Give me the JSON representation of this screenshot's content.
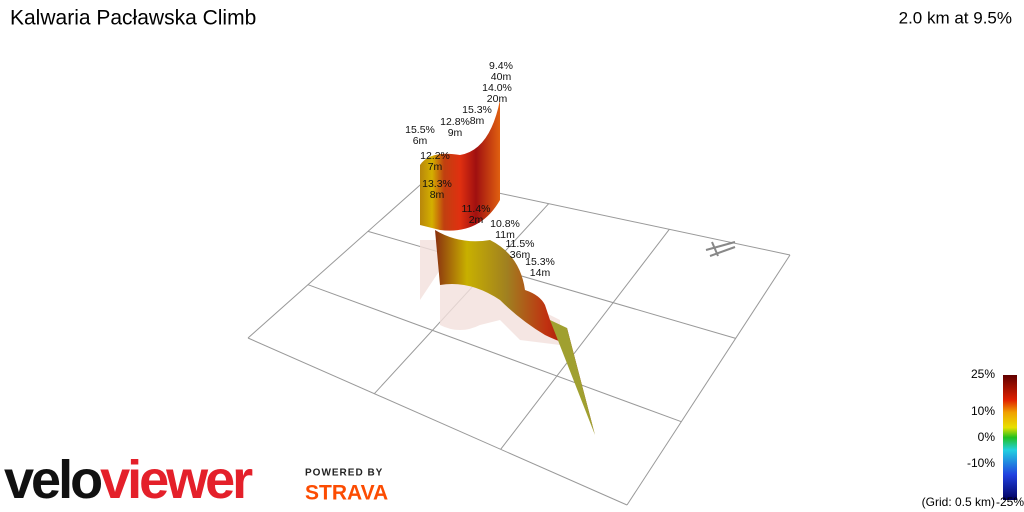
{
  "header": {
    "title": "Kalwaria Pacławska Climb",
    "summary": "2.0 km at 9.5%"
  },
  "annotations": [
    {
      "grade": "9.4%",
      "length": "40m"
    },
    {
      "grade": "14.0%",
      "length": "20m"
    },
    {
      "grade": "15.3%",
      "length": "8m"
    },
    {
      "grade": "12.8%",
      "length": "9m"
    },
    {
      "grade": "15.5%",
      "length": "6m"
    },
    {
      "grade": "12.2%",
      "length": "7m"
    },
    {
      "grade": "13.3%",
      "length": "8m"
    },
    {
      "grade": "11.4%",
      "length": "2m"
    },
    {
      "grade": "10.8%",
      "length": "11m"
    },
    {
      "grade": "11.5%",
      "length": "36m"
    },
    {
      "grade": "15.3%",
      "length": "14m"
    }
  ],
  "legend": {
    "labels": [
      "25%",
      "10%",
      "0%",
      "-10%",
      "-25%"
    ],
    "grid_note": "(Grid: 0.5 km)"
  },
  "logo": {
    "velo": "velo",
    "viewer": "viewer",
    "powered": "POWERED BY",
    "strava": "STRAVA"
  }
}
